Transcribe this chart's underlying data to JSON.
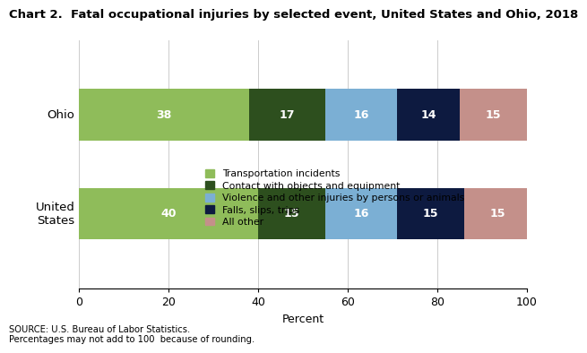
{
  "title": "Chart 2.  Fatal occupational injuries by selected event, United States and Ohio, 2018",
  "categories": [
    "Ohio",
    "United\nStates"
  ],
  "segments": [
    {
      "label": "Transportation incidents",
      "color": "#8fbc5a",
      "values": [
        38,
        40
      ]
    },
    {
      "label": "Contact with objects and equipment",
      "color": "#2d4f1e",
      "values": [
        17,
        15
      ]
    },
    {
      "label": "Violence and other injuries by persons or animals",
      "color": "#7bafd4",
      "values": [
        16,
        16
      ]
    },
    {
      "label": "Falls, slips, trips",
      "color": "#0d1a40",
      "values": [
        14,
        15
      ]
    },
    {
      "label": "All other",
      "color": "#c4908a",
      "values": [
        15,
        15
      ]
    }
  ],
  "xlabel": "Percent",
  "xlim": [
    0,
    100
  ],
  "xticks": [
    0,
    20,
    40,
    60,
    80,
    100
  ],
  "source_text": "SOURCE: U.S. Bureau of Labor Statistics.\nPercentages may not add to 100  because of rounding.",
  "label_color": "white",
  "label_fontsize": 9,
  "title_fontsize": 9.5,
  "bar_height": 0.52
}
